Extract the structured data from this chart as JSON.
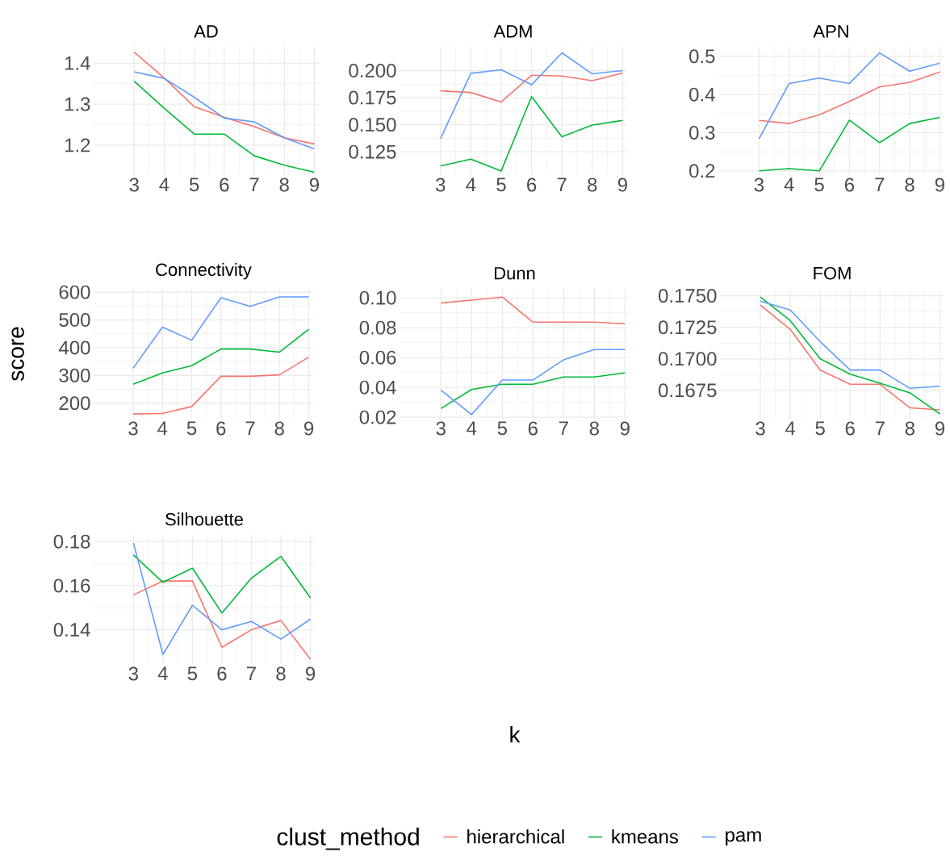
{
  "chart_data": [
    {
      "type": "line",
      "title": "AD",
      "x": [
        3,
        4,
        5,
        6,
        7,
        8,
        9
      ],
      "xlim": [
        1.65,
        9.15
      ],
      "xticks": [
        3,
        4,
        5,
        6,
        7,
        8,
        9
      ],
      "ylim": [
        1.127,
        1.44
      ],
      "yticks": [
        1.2,
        1.3,
        1.4
      ],
      "grid": true,
      "series": [
        {
          "color": "#f8766d",
          "values": [
            1.427,
            1.364,
            1.294,
            1.268,
            1.245,
            1.218,
            1.203
          ]
        },
        {
          "color": "#00ba38",
          "values": [
            1.356,
            1.29,
            1.227,
            1.227,
            1.174,
            1.151,
            1.134
          ]
        },
        {
          "color": "#619cff",
          "values": [
            1.379,
            1.363,
            1.317,
            1.266,
            1.257,
            1.218,
            1.191
          ]
        }
      ]
    },
    {
      "type": "line",
      "title": "ADM",
      "x": [
        3,
        4,
        5,
        6,
        7,
        8,
        9
      ],
      "xlim": [
        1.65,
        9.15
      ],
      "xticks": [
        3,
        4,
        5,
        6,
        7,
        8,
        9
      ],
      "ylim": [
        0.1035,
        0.222
      ],
      "yticks": [
        0.125,
        {
          "value": 0.15,
          "label": "0.150"
        },
        0.175,
        {
          "value": 0.2,
          "label": "0.200"
        }
      ],
      "grid": true,
      "series": [
        {
          "color": "#f8766d",
          "values": [
            0.1813,
            0.1798,
            0.171,
            0.1957,
            0.195,
            0.1907,
            0.1977
          ]
        },
        {
          "color": "#00ba38",
          "values": [
            0.1119,
            0.1182,
            0.1073,
            0.176,
            0.1389,
            0.1497,
            0.154
          ]
        },
        {
          "color": "#619cff",
          "values": [
            0.1371,
            0.1975,
            0.2008,
            0.1869,
            0.2164,
            0.197,
            0.2
          ]
        }
      ]
    },
    {
      "type": "line",
      "title": "APN",
      "x": [
        3,
        4,
        5,
        6,
        7,
        8,
        9
      ],
      "xlim": [
        1.65,
        9.15
      ],
      "xticks": [
        3,
        4,
        5,
        6,
        7,
        8,
        9
      ],
      "ylim": [
        0.189,
        0.525
      ],
      "yticks": [
        0.2,
        0.3,
        0.4,
        0.5
      ],
      "grid": true,
      "series": [
        {
          "color": "#f8766d",
          "values": [
            0.332,
            0.324,
            0.347,
            0.382,
            0.42,
            0.432,
            0.459
          ]
        },
        {
          "color": "#00ba38",
          "values": [
            0.2,
            0.206,
            0.2,
            0.333,
            0.274,
            0.324,
            0.34
          ]
        },
        {
          "color": "#619cff",
          "values": [
            0.284,
            0.429,
            0.443,
            0.429,
            0.509,
            0.461,
            0.482
          ]
        }
      ]
    },
    {
      "type": "line",
      "title": "Connectivity",
      "ylabel": "score",
      "x": [
        3,
        4,
        5,
        6,
        7,
        8,
        9
      ],
      "xlim": [
        1.65,
        9.15
      ],
      "xticks": [
        3,
        4,
        5,
        6,
        7,
        8,
        9
      ],
      "ylim": [
        144,
        612
      ],
      "yticks": [
        200,
        300,
        400,
        500,
        600
      ],
      "grid": true,
      "series": [
        {
          "color": "#f8766d",
          "values": [
            161,
            163,
            188,
            297,
            297,
            302,
            366
          ]
        },
        {
          "color": "#00ba38",
          "values": [
            268,
            309,
            335,
            395,
            395,
            384,
            466
          ]
        },
        {
          "color": "#619cff",
          "values": [
            326,
            474,
            427,
            580,
            549,
            583,
            583
          ]
        }
      ]
    },
    {
      "type": "line",
      "title": "Dunn",
      "xlabel": "k",
      "x": [
        3,
        4,
        5,
        6,
        7,
        8,
        9
      ],
      "xlim": [
        1.65,
        9.15
      ],
      "xticks": [
        3,
        4,
        5,
        6,
        7,
        8,
        9
      ],
      "ylim": [
        0.019,
        0.106
      ],
      "yticks": [
        0.02,
        0.04,
        0.06,
        0.08,
        {
          "value": 0.1,
          "label": "0.10"
        }
      ],
      "grid": true,
      "series": [
        {
          "color": "#f8766d",
          "values": [
            0.0965,
            0.0984,
            0.1005,
            0.0837,
            0.0837,
            0.0837,
            0.0826
          ]
        },
        {
          "color": "#00ba38",
          "values": [
            0.0258,
            0.0386,
            0.0421,
            0.0421,
            0.047,
            0.047,
            0.0497
          ]
        },
        {
          "color": "#619cff",
          "values": [
            0.0381,
            0.0218,
            0.0449,
            0.0449,
            0.0585,
            0.0653,
            0.0653
          ]
        }
      ]
    },
    {
      "type": "line",
      "title": "FOM",
      "x": [
        3,
        4,
        5,
        6,
        7,
        8,
        9
      ],
      "xlim": [
        1.65,
        9.15
      ],
      "xticks": [
        3,
        4,
        5,
        6,
        7,
        8,
        9
      ],
      "ylim": [
        0.16525,
        0.17555
      ],
      "yticks": [
        {
          "value": 0.1675,
          "label": "0.1675"
        },
        {
          "value": 0.17,
          "label": "0.1700"
        },
        {
          "value": 0.1725,
          "label": "0.1725"
        },
        {
          "value": 0.175,
          "label": "0.1750"
        }
      ],
      "grid": true,
      "series": [
        {
          "color": "#f8766d",
          "values": [
            0.17426,
            0.17233,
            0.16911,
            0.16798,
            0.16798,
            0.16611,
            0.16595
          ]
        },
        {
          "color": "#00ba38",
          "values": [
            0.1749,
            0.17303,
            0.17,
            0.16878,
            0.16807,
            0.1673,
            0.16563
          ]
        },
        {
          "color": "#619cff",
          "values": [
            0.17458,
            0.17387,
            0.17136,
            0.16911,
            0.16911,
            0.16766,
            0.16782
          ]
        }
      ]
    },
    {
      "type": "line",
      "title": "Silhouette",
      "legend": "bottom",
      "legend_title": "clust_method",
      "x": [
        3,
        4,
        5,
        6,
        7,
        8,
        9
      ],
      "xlim": [
        1.65,
        9.15
      ],
      "xticks": [
        3,
        4,
        5,
        6,
        7,
        8,
        9
      ],
      "ylim": [
        0.1245,
        0.183
      ],
      "yticks": [
        0.14,
        0.16,
        0.18
      ],
      "grid": true,
      "series": [
        {
          "name": "hierarchical",
          "color": "#f8766d",
          "values": [
            0.1558,
            0.1621,
            0.1621,
            0.1321,
            0.14,
            0.1442,
            0.1267
          ]
        },
        {
          "name": "kmeans",
          "color": "#00ba38",
          "values": [
            0.1739,
            0.1615,
            0.1679,
            0.1476,
            0.1634,
            0.1733,
            0.1545
          ]
        },
        {
          "name": "pam",
          "color": "#619cff",
          "values": [
            0.1794,
            0.1288,
            0.1511,
            0.14,
            0.1438,
            0.1358,
            0.1448
          ]
        }
      ]
    }
  ]
}
